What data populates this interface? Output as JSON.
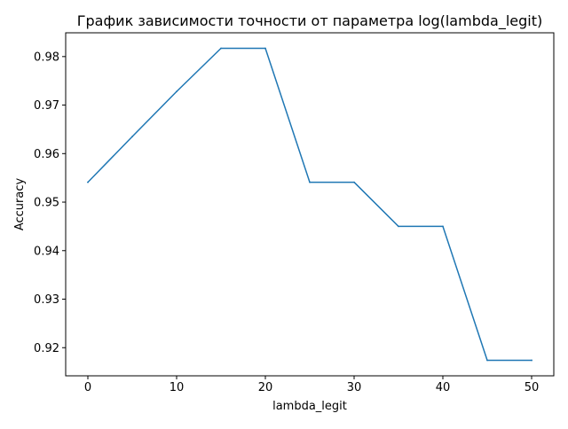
{
  "chart_data": {
    "type": "line",
    "title": "График зависимости точности от параметра log(lambda_legit)",
    "xlabel": "lambda_legit",
    "ylabel": "Accuracy",
    "x": [
      0,
      5,
      10,
      15,
      20,
      25,
      30,
      35,
      40,
      45,
      50
    ],
    "series": [
      {
        "values": [
          0.9541,
          0.9635,
          0.9728,
          0.9817,
          0.9817,
          0.9541,
          0.9541,
          0.945,
          0.945,
          0.9174,
          0.9174
        ],
        "color": "#1f77b4"
      }
    ],
    "xlim": [
      -2.5,
      52.5
    ],
    "ylim": [
      0.9142,
      0.9849
    ],
    "xticks": [
      0,
      10,
      20,
      30,
      40,
      50
    ],
    "yticks": [
      0.92,
      0.93,
      0.94,
      0.95,
      0.96,
      0.97,
      0.98
    ],
    "xtick_labels": [
      "0",
      "10",
      "20",
      "30",
      "40",
      "50"
    ],
    "ytick_labels": [
      "0.92",
      "0.93",
      "0.94",
      "0.95",
      "0.96",
      "0.97",
      "0.98"
    ],
    "grid": false,
    "legend": "none"
  }
}
